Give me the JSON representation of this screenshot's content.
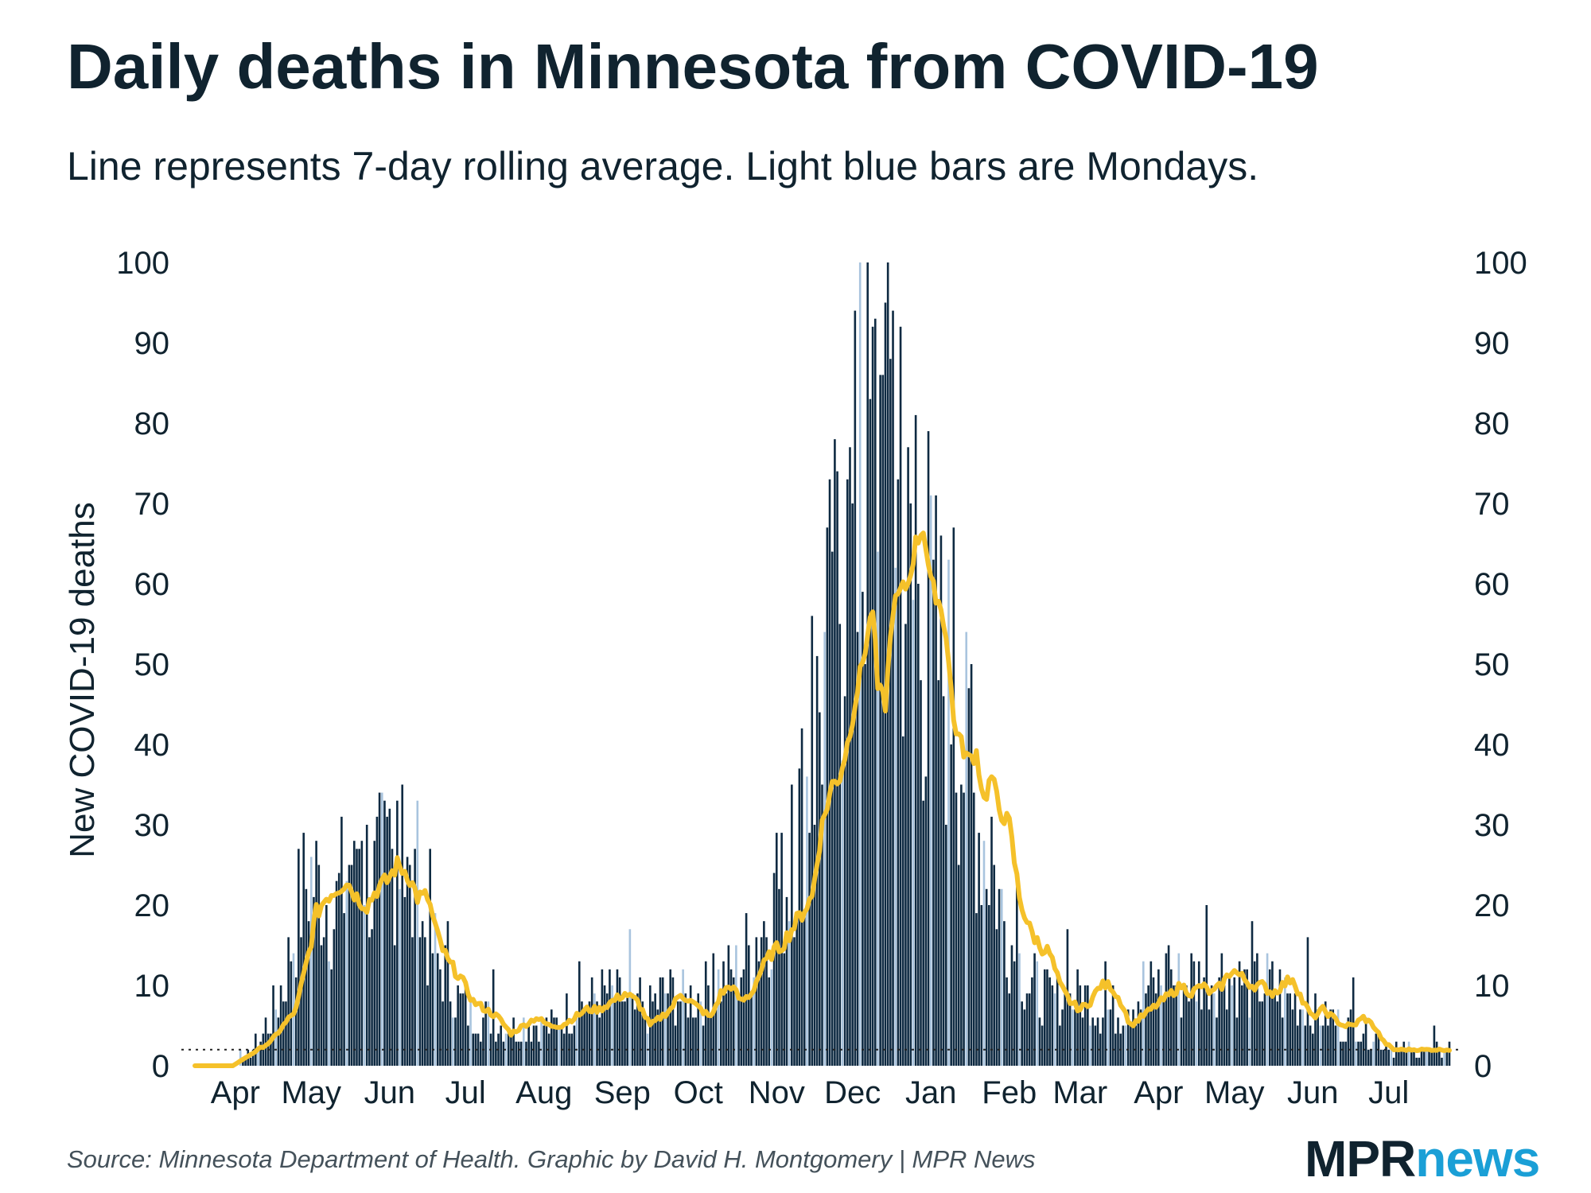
{
  "header": {
    "title": "Daily deaths in Minnesota from COVID-19",
    "subtitle": "Line represents 7-day rolling average. Light blue bars are Mondays."
  },
  "footer": {
    "source": "Source: Minnesota Department of Health. Graphic by David H. Montgomery | MPR News",
    "logo_mpr": "MPR",
    "logo_news": "news"
  },
  "colors": {
    "bar": "#0e2a42",
    "monday_bar": "#a9c4de",
    "line": "#f5c12a",
    "text": "#10232f"
  },
  "chart_data": {
    "type": "bar",
    "title": "Daily deaths in Minnesota from COVID-19",
    "subtitle": "Line represents 7-day rolling average. Light blue bars are Mondays.",
    "ylabel": "New COVID-19 deaths",
    "xlabel": "",
    "ylim": [
      0,
      100
    ],
    "yticks": [
      0,
      10,
      20,
      30,
      40,
      50,
      60,
      70,
      80,
      90,
      100
    ],
    "x_range_days": [
      0,
      496
    ],
    "month_ticks": [
      {
        "label": "Apr",
        "day": 16
      },
      {
        "label": "May",
        "day": 46
      },
      {
        "label": "Jun",
        "day": 77
      },
      {
        "label": "Jul",
        "day": 107
      },
      {
        "label": "Aug",
        "day": 138
      },
      {
        "label": "Sep",
        "day": 169
      },
      {
        "label": "Oct",
        "day": 199
      },
      {
        "label": "Nov",
        "day": 230
      },
      {
        "label": "Dec",
        "day": 260
      },
      {
        "label": "Jan",
        "day": 291
      },
      {
        "label": "Feb",
        "day": 322
      },
      {
        "label": "Mar",
        "day": 350
      },
      {
        "label": "Apr",
        "day": 381
      },
      {
        "label": "May",
        "day": 411
      },
      {
        "label": "Jun",
        "day": 442
      },
      {
        "label": "Jul",
        "day": 472
      }
    ],
    "first_monday_day": 4,
    "reference_line_value": 2,
    "daily_anchors": [
      [
        0,
        0
      ],
      [
        15,
        0
      ],
      [
        20,
        1
      ],
      [
        25,
        3
      ],
      [
        30,
        6
      ],
      [
        35,
        10
      ],
      [
        40,
        18
      ],
      [
        45,
        24
      ],
      [
        50,
        22
      ],
      [
        55,
        19
      ],
      [
        60,
        24
      ],
      [
        65,
        29
      ],
      [
        70,
        22
      ],
      [
        75,
        25
      ],
      [
        80,
        27
      ],
      [
        85,
        21
      ],
      [
        90,
        17
      ],
      [
        95,
        14
      ],
      [
        100,
        11
      ],
      [
        105,
        8
      ],
      [
        110,
        6
      ],
      [
        115,
        6
      ],
      [
        120,
        5
      ],
      [
        125,
        5
      ],
      [
        130,
        5
      ],
      [
        135,
        5
      ],
      [
        140,
        5
      ],
      [
        145,
        6
      ],
      [
        150,
        7
      ],
      [
        155,
        8
      ],
      [
        160,
        9
      ],
      [
        165,
        9
      ],
      [
        170,
        8
      ],
      [
        175,
        6
      ],
      [
        180,
        7
      ],
      [
        185,
        9
      ],
      [
        190,
        9
      ],
      [
        195,
        8
      ],
      [
        200,
        9
      ],
      [
        205,
        10
      ],
      [
        210,
        11
      ],
      [
        215,
        12
      ],
      [
        220,
        15
      ],
      [
        225,
        18
      ],
      [
        230,
        20
      ],
      [
        235,
        24
      ],
      [
        240,
        32
      ],
      [
        245,
        40
      ],
      [
        250,
        50
      ],
      [
        255,
        60
      ],
      [
        260,
        65
      ],
      [
        265,
        72
      ],
      [
        270,
        80
      ],
      [
        275,
        80
      ],
      [
        280,
        62
      ],
      [
        285,
        55
      ],
      [
        290,
        52
      ],
      [
        295,
        50
      ],
      [
        300,
        45
      ],
      [
        305,
        38
      ],
      [
        310,
        30
      ],
      [
        315,
        25
      ],
      [
        320,
        18
      ],
      [
        325,
        13
      ],
      [
        330,
        10
      ],
      [
        335,
        9
      ],
      [
        340,
        8
      ],
      [
        345,
        8
      ],
      [
        350,
        9
      ],
      [
        355,
        8
      ],
      [
        360,
        7
      ],
      [
        365,
        7
      ],
      [
        370,
        8
      ],
      [
        375,
        9
      ],
      [
        380,
        10
      ],
      [
        385,
        11
      ],
      [
        390,
        10
      ],
      [
        395,
        11
      ],
      [
        400,
        11
      ],
      [
        405,
        12
      ],
      [
        410,
        11
      ],
      [
        415,
        10
      ],
      [
        420,
        10
      ],
      [
        425,
        10
      ],
      [
        430,
        9
      ],
      [
        435,
        8
      ],
      [
        440,
        7
      ],
      [
        445,
        6
      ],
      [
        450,
        6
      ],
      [
        455,
        5
      ],
      [
        460,
        5
      ],
      [
        465,
        4
      ],
      [
        470,
        3
      ],
      [
        475,
        2
      ],
      [
        480,
        2
      ],
      [
        485,
        2
      ],
      [
        490,
        2
      ],
      [
        496,
        2
      ]
    ],
    "daily_spikes": [
      [
        82,
        35
      ],
      [
        88,
        33
      ],
      [
        80,
        33
      ],
      [
        77,
        32
      ],
      [
        63,
        28
      ],
      [
        66,
        28
      ],
      [
        93,
        27
      ],
      [
        100,
        18
      ],
      [
        118,
        12
      ],
      [
        152,
        13
      ],
      [
        172,
        17
      ],
      [
        176,
        11
      ],
      [
        205,
        14
      ],
      [
        230,
        29
      ],
      [
        236,
        35
      ],
      [
        244,
        56
      ],
      [
        252,
        64
      ],
      [
        258,
        73
      ],
      [
        263,
        101
      ],
      [
        268,
        92
      ],
      [
        272,
        86
      ],
      [
        276,
        94
      ],
      [
        279,
        92
      ],
      [
        285,
        81
      ],
      [
        290,
        79
      ],
      [
        293,
        71
      ],
      [
        300,
        67
      ],
      [
        307,
        50
      ],
      [
        315,
        31
      ],
      [
        325,
        24
      ],
      [
        345,
        17
      ],
      [
        360,
        13
      ],
      [
        375,
        13
      ],
      [
        385,
        15
      ],
      [
        400,
        20
      ],
      [
        418,
        18
      ],
      [
        440,
        16
      ],
      [
        458,
        11
      ],
      [
        475,
        3
      ],
      [
        490,
        5
      ]
    ],
    "rolling_average_anchors": [
      [
        0,
        0
      ],
      [
        15,
        0
      ],
      [
        20,
        1
      ],
      [
        25,
        2
      ],
      [
        30,
        3
      ],
      [
        35,
        5
      ],
      [
        40,
        7
      ],
      [
        45,
        14
      ],
      [
        48,
        19
      ],
      [
        52,
        21
      ],
      [
        56,
        22
      ],
      [
        60,
        23
      ],
      [
        64,
        21
      ],
      [
        68,
        20
      ],
      [
        72,
        22
      ],
      [
        76,
        23
      ],
      [
        80,
        25
      ],
      [
        84,
        24
      ],
      [
        88,
        21
      ],
      [
        92,
        21
      ],
      [
        96,
        16
      ],
      [
        100,
        13
      ],
      [
        105,
        11
      ],
      [
        110,
        8
      ],
      [
        115,
        7
      ],
      [
        120,
        6
      ],
      [
        125,
        4
      ],
      [
        130,
        5
      ],
      [
        135,
        6
      ],
      [
        140,
        5
      ],
      [
        145,
        5
      ],
      [
        150,
        6
      ],
      [
        155,
        7
      ],
      [
        160,
        7
      ],
      [
        165,
        8
      ],
      [
        170,
        9
      ],
      [
        175,
        8
      ],
      [
        180,
        5
      ],
      [
        184,
        6
      ],
      [
        188,
        7
      ],
      [
        192,
        9
      ],
      [
        196,
        8
      ],
      [
        200,
        7
      ],
      [
        204,
        6
      ],
      [
        208,
        9
      ],
      [
        212,
        10
      ],
      [
        216,
        8
      ],
      [
        220,
        9
      ],
      [
        224,
        12
      ],
      [
        228,
        14
      ],
      [
        232,
        15
      ],
      [
        236,
        17
      ],
      [
        240,
        19
      ],
      [
        244,
        21
      ],
      [
        248,
        30
      ],
      [
        252,
        35
      ],
      [
        255,
        36
      ],
      [
        258,
        40
      ],
      [
        262,
        47
      ],
      [
        265,
        52
      ],
      [
        268,
        57
      ],
      [
        270,
        47
      ],
      [
        273,
        45
      ],
      [
        276,
        57
      ],
      [
        279,
        59
      ],
      [
        282,
        60
      ],
      [
        285,
        65
      ],
      [
        288,
        67
      ],
      [
        291,
        60
      ],
      [
        294,
        58
      ],
      [
        297,
        54
      ],
      [
        300,
        43
      ],
      [
        303,
        40
      ],
      [
        306,
        38
      ],
      [
        309,
        39
      ],
      [
        312,
        33
      ],
      [
        315,
        36
      ],
      [
        318,
        32
      ],
      [
        322,
        30
      ],
      [
        326,
        21
      ],
      [
        330,
        17
      ],
      [
        334,
        15
      ],
      [
        338,
        14
      ],
      [
        342,
        10
      ],
      [
        346,
        8
      ],
      [
        350,
        7
      ],
      [
        354,
        8
      ],
      [
        358,
        10
      ],
      [
        362,
        10
      ],
      [
        366,
        8
      ],
      [
        370,
        5
      ],
      [
        374,
        6
      ],
      [
        378,
        7
      ],
      [
        382,
        8
      ],
      [
        386,
        9
      ],
      [
        390,
        10
      ],
      [
        394,
        9
      ],
      [
        398,
        10
      ],
      [
        402,
        9
      ],
      [
        406,
        10
      ],
      [
        410,
        12
      ],
      [
        414,
        11
      ],
      [
        418,
        10
      ],
      [
        422,
        10
      ],
      [
        426,
        9
      ],
      [
        430,
        10
      ],
      [
        434,
        11
      ],
      [
        438,
        8
      ],
      [
        442,
        6
      ],
      [
        446,
        7
      ],
      [
        450,
        6
      ],
      [
        454,
        5
      ],
      [
        458,
        5
      ],
      [
        462,
        6
      ],
      [
        466,
        5
      ],
      [
        470,
        3
      ],
      [
        474,
        2
      ],
      [
        478,
        2
      ],
      [
        482,
        2
      ],
      [
        486,
        2
      ],
      [
        490,
        2
      ],
      [
        494,
        2
      ]
    ]
  }
}
